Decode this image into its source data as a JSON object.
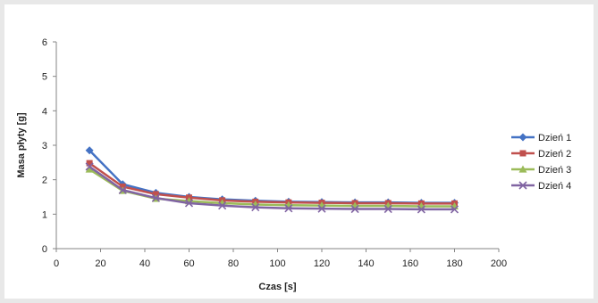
{
  "chart_data": {
    "type": "line",
    "title": "",
    "xlabel": "Czas [s]",
    "ylabel": "Masa płyty [g]",
    "xlim": [
      0,
      200
    ],
    "ylim": [
      0,
      6
    ],
    "xticks": [
      0,
      20,
      40,
      60,
      80,
      100,
      120,
      140,
      160,
      180,
      200
    ],
    "yticks": [
      0,
      1,
      2,
      3,
      4,
      5,
      6
    ],
    "grid": false,
    "legend_position": "right",
    "x": [
      15,
      30,
      45,
      60,
      75,
      90,
      105,
      120,
      135,
      150,
      165,
      180
    ],
    "series": [
      {
        "name": "Dzień 1",
        "color": "#4472C4",
        "marker": "diamond",
        "values": [
          2.85,
          1.87,
          1.62,
          1.5,
          1.43,
          1.39,
          1.36,
          1.35,
          1.34,
          1.34,
          1.33,
          1.33
        ]
      },
      {
        "name": "Dzień 2",
        "color": "#C0504D",
        "marker": "square",
        "values": [
          2.48,
          1.8,
          1.58,
          1.48,
          1.4,
          1.36,
          1.34,
          1.33,
          1.32,
          1.32,
          1.31,
          1.31
        ]
      },
      {
        "name": "Dzień 3",
        "color": "#9BBB59",
        "marker": "triangle",
        "values": [
          2.3,
          1.68,
          1.45,
          1.38,
          1.32,
          1.28,
          1.26,
          1.25,
          1.24,
          1.24,
          1.23,
          1.23
        ]
      },
      {
        "name": "Dzień 4",
        "color": "#8064A2",
        "marker": "x",
        "values": [
          2.38,
          1.7,
          1.47,
          1.32,
          1.25,
          1.2,
          1.17,
          1.16,
          1.15,
          1.15,
          1.14,
          1.14
        ]
      }
    ]
  }
}
